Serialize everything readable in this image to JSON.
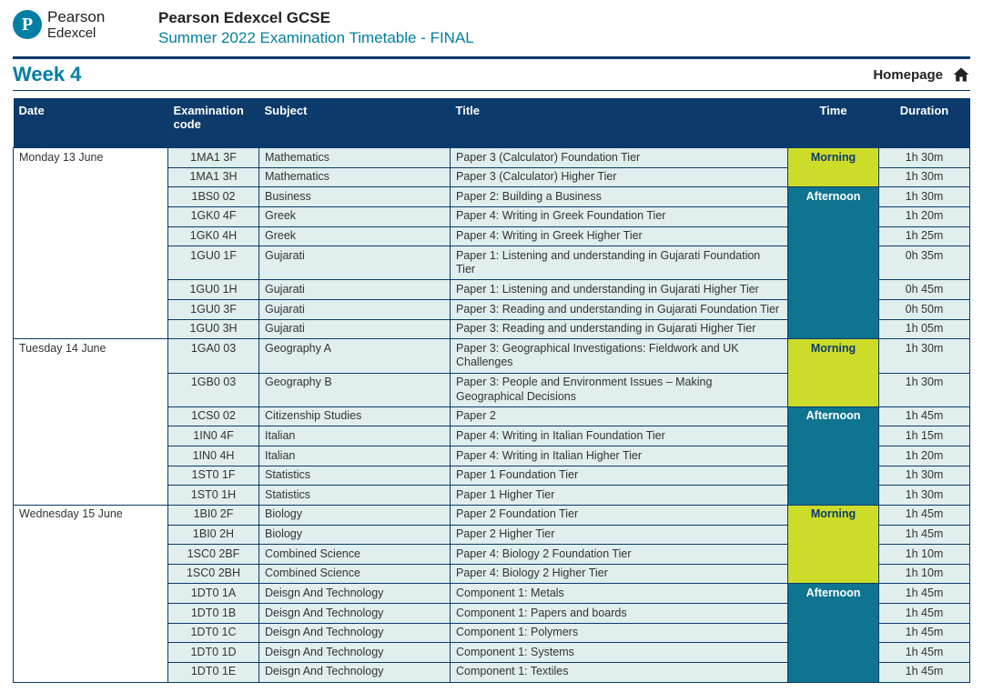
{
  "brand": {
    "mark_letter": "P",
    "line1": "Pearson",
    "line2": "Edexcel"
  },
  "header": {
    "title": "Pearson Edexcel GCSE",
    "subtitle": "Summer 2022 Examination Timetable - FINAL"
  },
  "week_label": "Week 4",
  "homepage_label": "Homepage",
  "columns": {
    "date": "Date",
    "code": "Examination code",
    "subject": "Subject",
    "title": "Title",
    "time": "Time",
    "duration": "Duration"
  },
  "time_labels": {
    "morning": "Morning",
    "afternoon": "Afternoon"
  },
  "colors": {
    "header_bg": "#0b3a6b",
    "row_bg": "#e0eeee",
    "morning_bg": "#cddc29",
    "afternoon_bg": "#0e7490",
    "accent_teal": "#007fa3"
  },
  "days": [
    {
      "date": "Monday 13 June",
      "blocks": [
        {
          "time": "morning",
          "rows": [
            {
              "code": "1MA1 3F",
              "subject": "Mathematics",
              "title": "Paper 3 (Calculator) Foundation Tier",
              "duration": "1h 30m"
            },
            {
              "code": "1MA1 3H",
              "subject": "Mathematics",
              "title": "Paper 3 (Calculator) Higher Tier",
              "duration": "1h 30m"
            }
          ]
        },
        {
          "time": "afternoon",
          "rows": [
            {
              "code": "1BS0 02",
              "subject": "Business",
              "title": "Paper 2: Building a Business",
              "duration": "1h 30m"
            },
            {
              "code": "1GK0 4F",
              "subject": "Greek",
              "title": "Paper 4: Writing in Greek Foundation Tier",
              "duration": "1h 20m"
            },
            {
              "code": "1GK0 4H",
              "subject": "Greek",
              "title": "Paper 4: Writing in Greek Higher Tier",
              "duration": "1h 25m"
            },
            {
              "code": "1GU0 1F",
              "subject": "Gujarati",
              "title": "Paper 1: Listening and understanding in Gujarati Foundation Tier",
              "duration": "0h 35m"
            },
            {
              "code": "1GU0 1H",
              "subject": "Gujarati",
              "title": "Paper 1: Listening and understanding in Gujarati Higher Tier",
              "duration": "0h 45m"
            },
            {
              "code": "1GU0 3F",
              "subject": "Gujarati",
              "title": "Paper 3: Reading and understanding in Gujarati Foundation Tier",
              "duration": "0h 50m"
            },
            {
              "code": "1GU0 3H",
              "subject": "Gujarati",
              "title": "Paper 3: Reading and understanding in Gujarati Higher Tier",
              "duration": "1h 05m"
            }
          ]
        }
      ]
    },
    {
      "date": "Tuesday 14 June",
      "blocks": [
        {
          "time": "morning",
          "rows": [
            {
              "code": "1GA0 03",
              "subject": "Geography A",
              "title": "Paper 3: Geographical Investigations: Fieldwork and UK Challenges",
              "duration": "1h 30m"
            },
            {
              "code": "1GB0 03",
              "subject": "Geography B",
              "title": "Paper 3: People and Environment Issues – Making Geographical Decisions",
              "duration": "1h 30m"
            }
          ]
        },
        {
          "time": "afternoon",
          "rows": [
            {
              "code": "1CS0 02",
              "subject": "Citizenship Studies",
              "title": "Paper 2",
              "duration": "1h 45m"
            },
            {
              "code": "1IN0 4F",
              "subject": "Italian",
              "title": "Paper 4: Writing in Italian Foundation Tier",
              "duration": "1h 15m"
            },
            {
              "code": "1IN0 4H",
              "subject": "Italian",
              "title": "Paper 4: Writing in Italian Higher Tier",
              "duration": "1h 20m"
            },
            {
              "code": "1ST0 1F",
              "subject": "Statistics",
              "title": "Paper 1 Foundation Tier",
              "duration": "1h 30m"
            },
            {
              "code": "1ST0 1H",
              "subject": "Statistics",
              "title": "Paper 1 Higher Tier",
              "duration": "1h 30m"
            }
          ]
        }
      ]
    },
    {
      "date": "Wednesday 15 June",
      "blocks": [
        {
          "time": "morning",
          "rows": [
            {
              "code": "1BI0 2F",
              "subject": "Biology",
              "title": "Paper 2 Foundation Tier",
              "duration": "1h 45m"
            },
            {
              "code": "1BI0 2H",
              "subject": "Biology",
              "title": "Paper 2 Higher Tier",
              "duration": "1h 45m"
            },
            {
              "code": "1SC0 2BF",
              "subject": "Combined Science",
              "title": "Paper 4: Biology 2 Foundation Tier",
              "duration": "1h 10m"
            },
            {
              "code": "1SC0 2BH",
              "subject": "Combined Science",
              "title": "Paper 4: Biology 2 Higher Tier",
              "duration": "1h 10m"
            }
          ]
        },
        {
          "time": "afternoon",
          "rows": [
            {
              "code": "1DT0 1A",
              "subject": "Deisgn And Technology",
              "title": "Component 1: Metals",
              "duration": "1h 45m"
            },
            {
              "code": "1DT0 1B",
              "subject": "Deisgn And Technology",
              "title": "Component 1: Papers and boards",
              "duration": "1h 45m"
            },
            {
              "code": "1DT0 1C",
              "subject": "Deisgn And Technology",
              "title": "Component 1: Polymers",
              "duration": "1h 45m"
            },
            {
              "code": "1DT0 1D",
              "subject": "Deisgn And Technology",
              "title": "Component 1: Systems",
              "duration": "1h 45m"
            },
            {
              "code": "1DT0 1E",
              "subject": "Deisgn And Technology",
              "title": "Component 1: Textiles",
              "duration": "1h 45m"
            }
          ]
        }
      ]
    }
  ]
}
